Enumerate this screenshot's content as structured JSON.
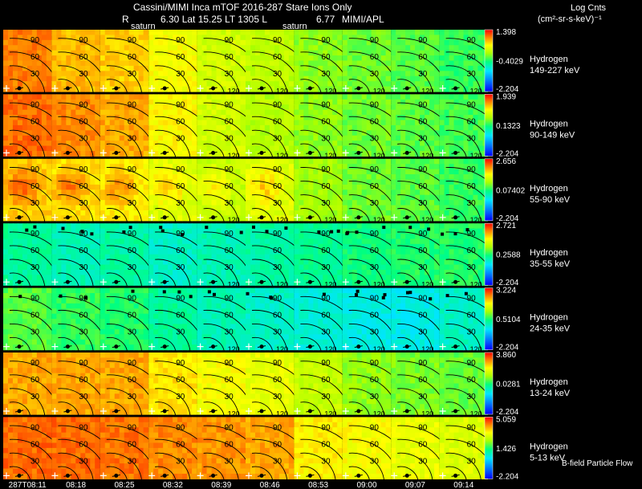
{
  "header": {
    "title_line": "Cassini/MIMI Inca mTOF  2016-287    Stare    Ions Only",
    "info_prefix": "R",
    "info_line": "6.30 Lat 15.25 LT 1305 L",
    "info_value": "6.77",
    "attribution": "MIMI/APL",
    "saturn_label": "saturn"
  },
  "colorbar_title": {
    "line1": "Log Cnts",
    "line2": "(cm²-sr-s-keV)⁻¹"
  },
  "footer": {
    "bfield_label": "B-field Particle Flow"
  },
  "colors": {
    "background": "#000000",
    "text": "#ffffff",
    "contour": "#000000"
  },
  "chart_data": {
    "type": "heatmap",
    "description_units": "log counts",
    "time_labels": [
      "287T08:11",
      "08:18",
      "08:25",
      "08:32",
      "08:39",
      "08:46",
      "08:53",
      "09:00",
      "09:07",
      "09:14"
    ],
    "contour_labels": [
      "90",
      "60",
      "30",
      "120"
    ],
    "rows": [
      {
        "species": "Hydrogen",
        "energy": "149-227 keV",
        "max": "1.398",
        "mid": "-0.4029",
        "min": "-2.204",
        "levels": [
          0.88,
          0.82,
          0.8,
          0.74,
          0.68,
          0.65,
          0.6,
          0.57,
          0.55,
          0.52
        ]
      },
      {
        "species": "Hydrogen",
        "energy": "90-149 keV",
        "max": "1.939",
        "mid": "0.1323",
        "min": "-2.204",
        "levels": [
          0.9,
          0.87,
          0.84,
          0.75,
          0.68,
          0.64,
          0.6,
          0.57,
          0.55,
          0.53
        ]
      },
      {
        "species": "Hydrogen",
        "energy": "55-90 keV",
        "max": "2.656",
        "mid": "0.07402",
        "min": "-2.204",
        "levels": [
          0.8,
          0.78,
          0.76,
          0.7,
          0.66,
          0.7,
          0.62,
          0.57,
          0.55,
          0.52
        ]
      },
      {
        "species": "Hydrogen",
        "energy": "35-55 keV",
        "max": "2.721",
        "mid": "0.2588",
        "min": "-2.204",
        "levels": [
          0.45,
          0.42,
          0.44,
          0.4,
          0.42,
          0.44,
          0.46,
          0.48,
          0.5,
          0.5
        ]
      },
      {
        "species": "Hydrogen",
        "energy": "24-35 keV",
        "max": "3.224",
        "mid": "0.5104",
        "min": "-2.204",
        "levels": [
          0.55,
          0.52,
          0.5,
          0.45,
          0.42,
          0.4,
          0.38,
          0.36,
          0.36,
          0.4
        ]
      },
      {
        "species": "Hydrogen",
        "energy": "13-24 keV",
        "max": "3.860",
        "mid": "0.0281",
        "min": "-2.204",
        "levels": [
          0.84,
          0.84,
          0.84,
          0.78,
          0.74,
          0.72,
          0.66,
          0.6,
          0.58,
          0.56
        ]
      },
      {
        "species": "Hydrogen",
        "energy": "5-13 keV",
        "max": "5.059",
        "mid": "1.426",
        "min": "-2.204",
        "levels": [
          0.9,
          0.9,
          0.89,
          0.87,
          0.86,
          0.84,
          0.76,
          0.74,
          0.72,
          0.7
        ]
      }
    ]
  }
}
